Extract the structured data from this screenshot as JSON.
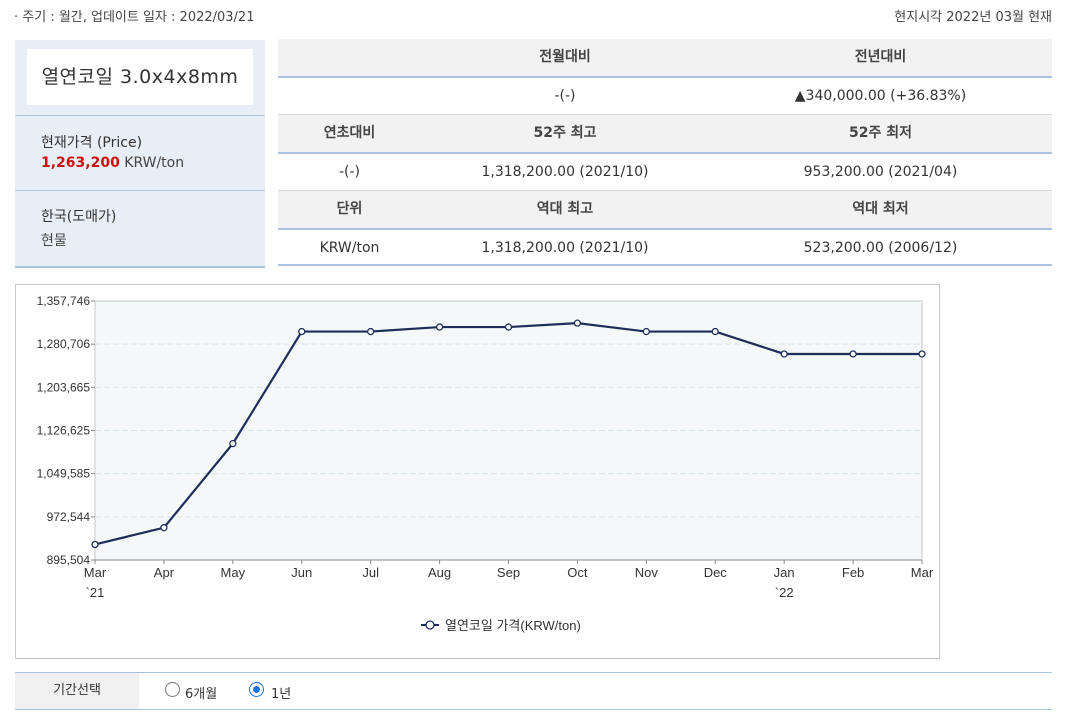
{
  "header": {
    "cycle_text": "· 주기 : 월간, 업데이트 일자 : 2022/03/21",
    "local_time": "현지시각 2022년 03월 현재"
  },
  "product": {
    "name": "열연코일 3.0x4x8mm",
    "price_label": "현재가격 (Price)",
    "price_value": "1,263,200",
    "price_unit": " KRW/ton",
    "region": "한국(도매가)",
    "kind": "현물"
  },
  "stats": {
    "row1": {
      "h_mom": "전월대비",
      "h_yoy": "전년대비",
      "mom": "-(-)",
      "yoy": "▲340,000.00 (+36.83%)"
    },
    "row2": {
      "h_ytd": "연초대비",
      "h_52high": "52주 최고",
      "h_52low": "52주 최저",
      "ytd": "-(-)",
      "high52": "1,318,200.00 (2021/10)",
      "low52": "953,200.00 (2021/04)"
    },
    "row3": {
      "h_unit": "단위",
      "h_allhigh": "역대 최고",
      "h_alllow": "역대 최저",
      "unit": "KRW/ton",
      "allhigh": "1,318,200.00 (2021/10)",
      "alllow": "523,200.00 (2006/12)"
    }
  },
  "chart_data": {
    "type": "line",
    "categories": [
      "Mar",
      "Apr",
      "May",
      "Jun",
      "Jul",
      "Aug",
      "Sep",
      "Oct",
      "Nov",
      "Dec",
      "Jan",
      "Feb",
      "Mar"
    ],
    "category_sublabels": [
      "`21",
      "",
      "",
      "",
      "",
      "",
      "",
      "",
      "",
      "",
      "`22",
      "",
      ""
    ],
    "series": [
      {
        "name": "열연코일 가격(KRW/ton)",
        "values": [
          923200,
          953200,
          1103200,
          1303200,
          1303200,
          1311200,
          1311200,
          1318200,
          1303200,
          1303200,
          1263200,
          1263200,
          1263200
        ]
      }
    ],
    "yticks": [
      "895,504",
      "972,544",
      "1,049,585",
      "1,126,625",
      "1,203,665",
      "1,280,706",
      "1,357,746"
    ],
    "ylim": [
      895504,
      1357746
    ],
    "legend_position": "bottom-center",
    "grid": true,
    "colors": {
      "line": "#1f2d5a",
      "plot_bg": "#f4f8f8",
      "grid": "#d6e6e6"
    }
  },
  "period": {
    "label": "기간선택",
    "opt6": "6개월",
    "opt1y": "1년",
    "selected": "1년"
  }
}
